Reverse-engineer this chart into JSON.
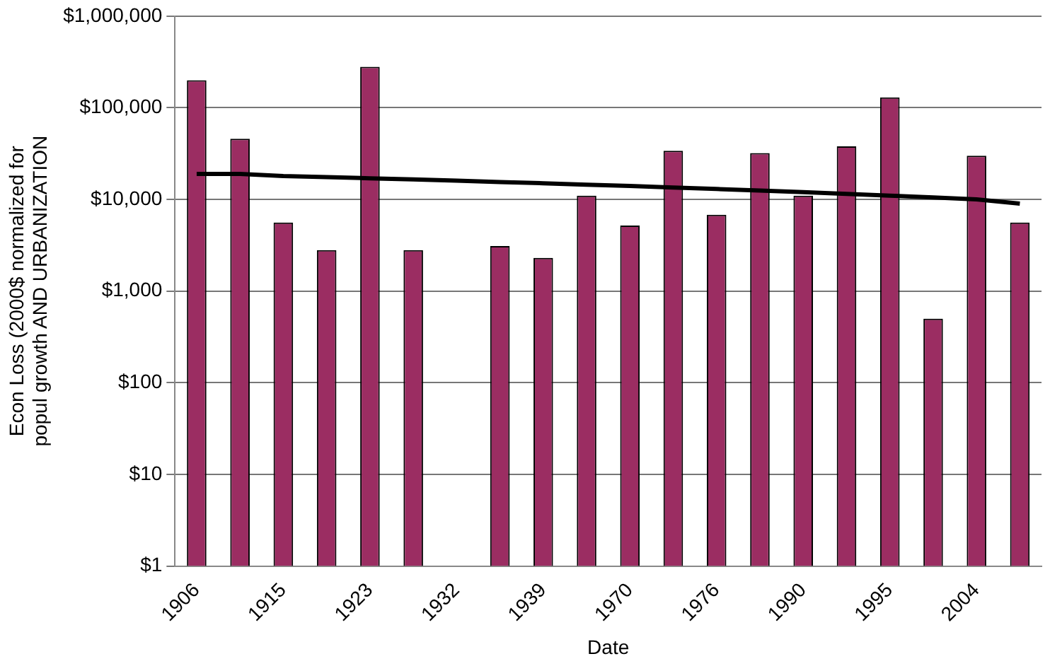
{
  "chart_data": {
    "type": "bar",
    "xlabel": "Date",
    "ylabel": "Econ Loss (2000$ normalized for\npopul growth AND URBANIZATION",
    "categories": [
      "1906",
      null,
      "1915",
      null,
      "1923",
      null,
      "1932",
      null,
      "1939",
      null,
      "1970",
      null,
      "1976",
      null,
      "1990",
      null,
      "1995",
      null,
      "2004",
      null
    ],
    "series": [
      {
        "color": "#9b2d62",
        "values": [
          200000,
          46000,
          5600,
          2800,
          280000,
          2800,
          null,
          3100,
          2300,
          11000,
          5200,
          34000,
          6800,
          32000,
          11000,
          38000,
          130000,
          500,
          30000,
          5600
        ]
      },
      {
        "type": "line",
        "color": "#000000",
        "marker": "none",
        "values": [
          19000,
          19000,
          18000,
          17500,
          17000,
          16500,
          16000,
          15500,
          15000,
          14500,
          14000,
          13500,
          13000,
          12500,
          12000,
          11500,
          11000,
          10500,
          10000,
          9000
        ]
      }
    ],
    "log": "y",
    "ylim": [
      1,
      1000000
    ],
    "yticks": [
      {
        "value": 1,
        "label": "$1"
      },
      {
        "value": 10,
        "label": "$10"
      },
      {
        "value": 100,
        "label": "$100"
      },
      {
        "value": 1000,
        "label": "$1,000"
      },
      {
        "value": 10000,
        "label": "$10,000"
      },
      {
        "value": 100000,
        "label": "$100,000"
      },
      {
        "value": 1000000,
        "label": "$1,000,000"
      }
    ],
    "grid": "y",
    "legend": false
  }
}
